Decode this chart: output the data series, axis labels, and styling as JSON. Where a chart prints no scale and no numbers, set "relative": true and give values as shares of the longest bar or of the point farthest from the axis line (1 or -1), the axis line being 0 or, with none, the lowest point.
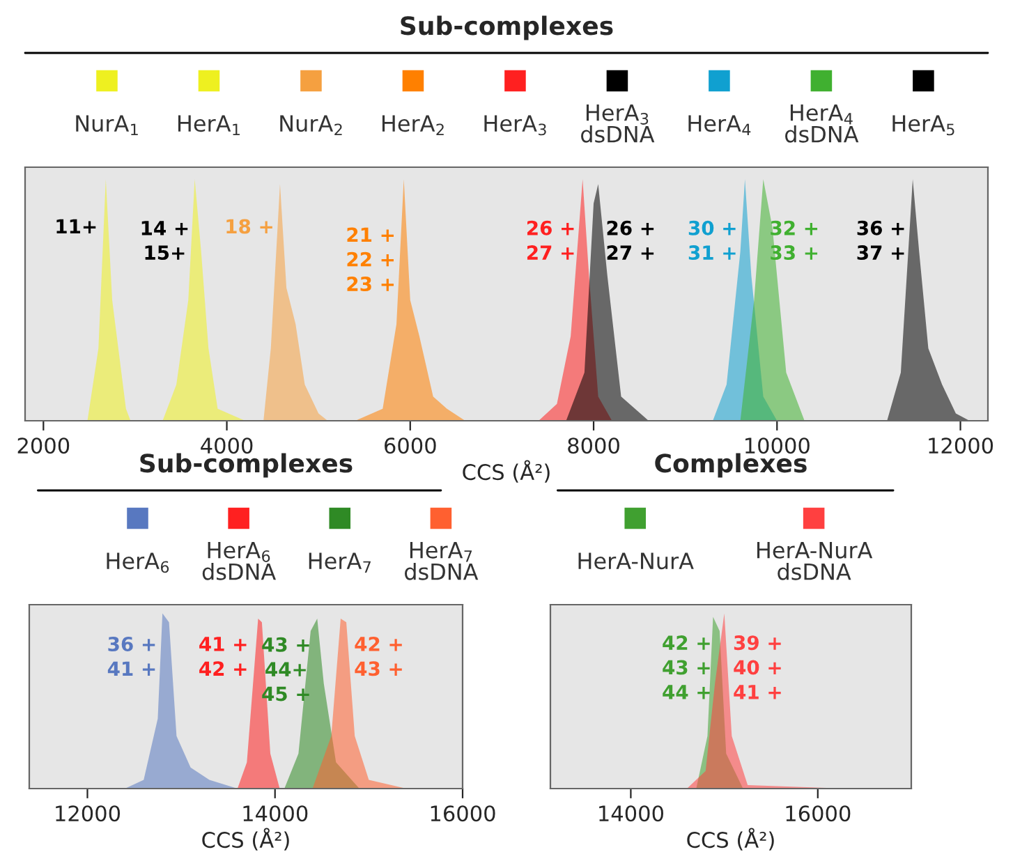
{
  "chart_data": [
    {
      "type": "area",
      "title": "Sub-complexes",
      "xlabel": "CCS (Å²)",
      "xlim": [
        1800,
        12300
      ],
      "xticks": [
        2000,
        4000,
        6000,
        8000,
        10000,
        12000
      ],
      "relative": true,
      "legend": "top",
      "grid": false,
      "series": [
        {
          "name": "NurA$_{1}$",
          "color": "#eef020",
          "x": [
            2480,
            2600,
            2680,
            2750,
            2800,
            2900,
            2950
          ],
          "values": [
            0,
            0.3,
            1.0,
            0.5,
            0.35,
            0.05,
            0
          ]
        },
        {
          "name": "HerA$_{1}$",
          "color": "#eef020",
          "x": [
            3300,
            3450,
            3580,
            3650,
            3720,
            3800,
            3900,
            4200
          ],
          "values": [
            0,
            0.15,
            0.5,
            1.0,
            0.7,
            0.3,
            0.05,
            0
          ]
        },
        {
          "name": "NurA$_{2}$",
          "color": "#f5a040",
          "x": [
            4400,
            4480,
            4580,
            4650,
            4750,
            4850,
            5000,
            5100
          ],
          "values": [
            0,
            0.3,
            0.98,
            0.55,
            0.4,
            0.15,
            0.03,
            0
          ]
        },
        {
          "name": "HerA$_{2}$",
          "color": "#ff8000",
          "x": [
            5400,
            5700,
            5850,
            5930,
            6000,
            6100,
            6250,
            6400,
            6600
          ],
          "values": [
            0,
            0.05,
            0.4,
            1.0,
            0.5,
            0.35,
            0.1,
            0.05,
            0
          ]
        },
        {
          "name": "HerA$_{3}$",
          "color": "#ff2020",
          "x": [
            7400,
            7600,
            7750,
            7880,
            7950,
            8050,
            8200
          ],
          "values": [
            0,
            0.07,
            0.35,
            1.0,
            0.6,
            0.1,
            0
          ]
        },
        {
          "name": "HerA$_{3}$\ndsDNA",
          "color": "#000000",
          "x": [
            7700,
            7900,
            8000,
            8050,
            8150,
            8300,
            8600
          ],
          "values": [
            0,
            0.2,
            0.9,
            0.98,
            0.6,
            0.1,
            0
          ]
        },
        {
          "name": "HerA$_{4}$",
          "color": "#10a0d0",
          "x": [
            9300,
            9450,
            9600,
            9650,
            9720,
            9850,
            10000
          ],
          "values": [
            0,
            0.15,
            0.7,
            1.0,
            0.6,
            0.1,
            0
          ]
        },
        {
          "name": "HerA$_{4}$\ndsDNA",
          "color": "#40b030",
          "x": [
            9600,
            9750,
            9850,
            9950,
            10100,
            10300
          ],
          "values": [
            0,
            0.5,
            1.0,
            0.8,
            0.2,
            0
          ]
        },
        {
          "name": "HerA$_{5}$",
          "color": "#000000",
          "x": [
            11200,
            11350,
            11480,
            11550,
            11650,
            11800,
            11950,
            12100
          ],
          "values": [
            0,
            0.2,
            1.0,
            0.7,
            0.3,
            0.15,
            0.03,
            0
          ]
        }
      ],
      "annotations": [
        "11+",
        "14 +\n15+",
        "18 +",
        "21 +\n22 +\n23 +",
        "26 +\n27 +",
        "26 +\n27 +",
        "30 +\n31 +",
        "32 +\n33 +",
        "36 +\n37 +"
      ]
    },
    {
      "type": "area",
      "title": "Sub-complexes",
      "xlabel": "CCS (Å²)",
      "xlim": [
        11380,
        16000
      ],
      "xticks": [
        12000,
        14000,
        16000
      ],
      "relative": true,
      "legend": "top",
      "grid": false,
      "series": [
        {
          "name": "HerA$_{6}$",
          "color": "#5878c0",
          "x": [
            12400,
            12600,
            12750,
            12800,
            12870,
            12950,
            13100,
            13300,
            13600
          ],
          "values": [
            0,
            0.05,
            0.4,
            1.0,
            0.95,
            0.3,
            0.12,
            0.05,
            0
          ]
        },
        {
          "name": "HerA$_{6}$\ndsDNA",
          "color": "#ff2020",
          "x": [
            13600,
            13700,
            13820,
            13860,
            13950,
            14050
          ],
          "values": [
            0,
            0.15,
            0.97,
            0.95,
            0.2,
            0
          ]
        },
        {
          "name": "HerA$_{7}$",
          "color": "#2f8a25",
          "x": [
            14100,
            14250,
            14380,
            14450,
            14520,
            14650,
            14900
          ],
          "values": [
            0,
            0.2,
            0.9,
            0.97,
            0.6,
            0.15,
            0
          ]
        },
        {
          "name": "HerA$_{7}$\ndsDNA",
          "color": "#ff6030",
          "x": [
            14400,
            14600,
            14700,
            14760,
            14850,
            15000,
            15400
          ],
          "values": [
            0,
            0.3,
            0.97,
            0.95,
            0.3,
            0.05,
            0
          ]
        }
      ],
      "annotations": [
        "36 +\n41 +",
        "41 +\n42 +",
        "43 +\n44+\n45 +",
        "42 +\n43 +"
      ]
    },
    {
      "type": "area",
      "title": "Complexes",
      "xlabel": "CCS (Å²)",
      "xlim": [
        13140,
        17000
      ],
      "xticks": [
        14000,
        16000
      ],
      "relative": true,
      "legend": "top",
      "grid": false,
      "series": [
        {
          "name": "HerA-NurA",
          "color": "#40a030",
          "x": [
            14700,
            14820,
            14880,
            14950,
            15020,
            15200
          ],
          "values": [
            0,
            0.3,
            0.98,
            0.9,
            0.2,
            0
          ]
        },
        {
          "name": "HerA-NurA\ndsDNA",
          "color": "#ff4040",
          "x": [
            14600,
            14800,
            14900,
            15000,
            15080,
            15250,
            16300
          ],
          "values": [
            0,
            0.1,
            0.6,
            1.0,
            0.3,
            0.02,
            0
          ]
        }
      ],
      "annotations": [
        "42 +\n43 +\n44 +",
        "39 +\n40 +\n41 +"
      ]
    }
  ]
}
